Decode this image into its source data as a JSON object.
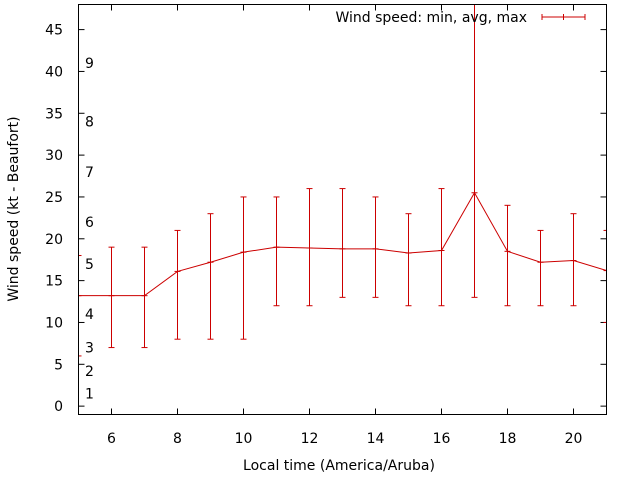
{
  "chart_data": {
    "type": "line",
    "title": "",
    "xlabel": "Local time (America/Aruba)",
    "ylabel": "Wind speed (kt - Beaufort)",
    "xlim": [
      5,
      21
    ],
    "ylim": [
      -1,
      48
    ],
    "x_ticks": [
      6,
      8,
      10,
      12,
      14,
      16,
      18,
      20
    ],
    "y_ticks": [
      0,
      5,
      10,
      15,
      20,
      25,
      30,
      35,
      40,
      45
    ],
    "beaufort_labels": [
      {
        "label": "1",
        "value": 1.5
      },
      {
        "label": "2",
        "value": 4.2
      },
      {
        "label": "3",
        "value": 7.0
      },
      {
        "label": "4",
        "value": 11.0
      },
      {
        "label": "5",
        "value": 17.0
      },
      {
        "label": "6",
        "value": 22.0
      },
      {
        "label": "7",
        "value": 28.0
      },
      {
        "label": "8",
        "value": 34.0
      },
      {
        "label": "9",
        "value": 41.0
      }
    ],
    "legend": {
      "label": "Wind speed: min, avg, max",
      "position": "top-right"
    },
    "color": "#cc0000",
    "series": [
      {
        "name": "Wind speed: min, avg, max",
        "x": [
          5,
          6,
          7,
          8,
          9,
          10,
          11,
          12,
          13,
          14,
          15,
          16,
          17,
          18,
          19,
          20,
          21
        ],
        "avg": [
          13.2,
          13.2,
          13.2,
          16.1,
          17.2,
          18.4,
          19.0,
          18.9,
          18.8,
          18.8,
          18.3,
          18.6,
          25.5,
          18.5,
          17.2,
          17.4,
          16.2
        ],
        "min": [
          6,
          7,
          7,
          8,
          8,
          8,
          12,
          12,
          13,
          13,
          12,
          12,
          13,
          12,
          12,
          12,
          10
        ],
        "max": [
          18,
          19,
          19,
          21,
          23,
          25,
          25,
          26,
          26,
          25,
          23,
          26,
          48,
          24,
          21,
          23,
          21
        ]
      }
    ]
  }
}
